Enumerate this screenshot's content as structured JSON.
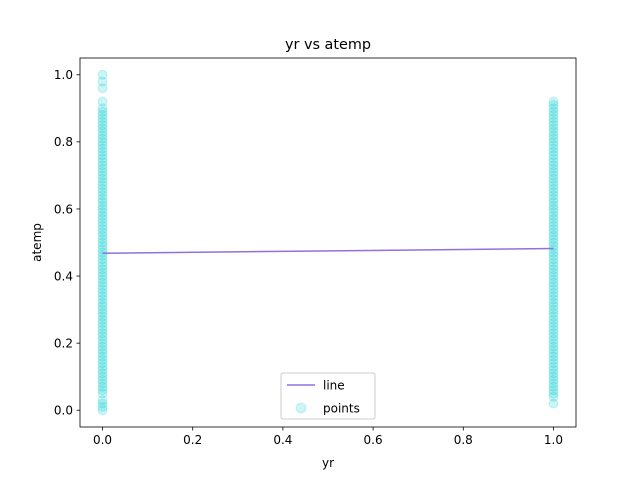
{
  "chart_data": {
    "type": "scatter",
    "title": "yr vs atemp",
    "xlabel": "yr",
    "ylabel": "atemp",
    "xlim": [
      -0.05,
      1.05
    ],
    "ylim": [
      -0.05,
      1.05
    ],
    "x_ticks": [
      0.0,
      0.2,
      0.4,
      0.6,
      0.8,
      1.0
    ],
    "x_tick_labels": [
      "0.0",
      "0.2",
      "0.4",
      "0.6",
      "0.8",
      "1.0"
    ],
    "y_ticks": [
      0.0,
      0.2,
      0.4,
      0.6,
      0.8,
      1.0
    ],
    "y_tick_labels": [
      "0.0",
      "0.2",
      "0.4",
      "0.6",
      "0.8",
      "1.0"
    ],
    "grid": false,
    "legend_position": "lower center",
    "series": [
      {
        "name": "line",
        "kind": "line",
        "color": "#9370db",
        "x": [
          0,
          1
        ],
        "y": [
          0.468,
          0.482
        ]
      },
      {
        "name": "points",
        "kind": "scatter",
        "color": "#00ced1",
        "alpha": 0.2,
        "groups": [
          {
            "x": 0,
            "y": [
              0.0,
              0.01,
              0.02,
              0.03,
              0.05,
              0.06,
              0.07,
              0.08,
              0.09,
              0.1,
              0.11,
              0.12,
              0.13,
              0.14,
              0.15,
              0.16,
              0.17,
              0.18,
              0.19,
              0.2,
              0.21,
              0.22,
              0.23,
              0.24,
              0.25,
              0.26,
              0.27,
              0.28,
              0.29,
              0.3,
              0.31,
              0.32,
              0.33,
              0.34,
              0.35,
              0.36,
              0.37,
              0.38,
              0.39,
              0.4,
              0.41,
              0.42,
              0.43,
              0.44,
              0.45,
              0.46,
              0.47,
              0.48,
              0.49,
              0.5,
              0.51,
              0.52,
              0.53,
              0.54,
              0.55,
              0.56,
              0.57,
              0.58,
              0.59,
              0.6,
              0.61,
              0.62,
              0.63,
              0.64,
              0.65,
              0.66,
              0.67,
              0.68,
              0.69,
              0.7,
              0.71,
              0.72,
              0.73,
              0.74,
              0.75,
              0.76,
              0.77,
              0.78,
              0.79,
              0.8,
              0.81,
              0.82,
              0.83,
              0.84,
              0.85,
              0.86,
              0.87,
              0.88,
              0.89,
              0.9,
              0.92,
              0.96,
              0.98,
              1.0
            ]
          },
          {
            "x": 1,
            "y": [
              0.02,
              0.04,
              0.05,
              0.06,
              0.07,
              0.08,
              0.09,
              0.1,
              0.11,
              0.12,
              0.13,
              0.14,
              0.15,
              0.16,
              0.17,
              0.18,
              0.19,
              0.2,
              0.21,
              0.22,
              0.23,
              0.24,
              0.25,
              0.26,
              0.27,
              0.28,
              0.29,
              0.3,
              0.31,
              0.32,
              0.33,
              0.34,
              0.35,
              0.36,
              0.37,
              0.38,
              0.39,
              0.4,
              0.41,
              0.42,
              0.43,
              0.44,
              0.45,
              0.46,
              0.47,
              0.48,
              0.49,
              0.5,
              0.51,
              0.52,
              0.53,
              0.54,
              0.55,
              0.56,
              0.57,
              0.58,
              0.59,
              0.6,
              0.61,
              0.62,
              0.63,
              0.64,
              0.65,
              0.66,
              0.67,
              0.68,
              0.69,
              0.7,
              0.71,
              0.72,
              0.73,
              0.74,
              0.75,
              0.76,
              0.77,
              0.78,
              0.79,
              0.8,
              0.81,
              0.82,
              0.83,
              0.84,
              0.85,
              0.86,
              0.87,
              0.88,
              0.89,
              0.9,
              0.91,
              0.92
            ]
          }
        ]
      }
    ]
  }
}
